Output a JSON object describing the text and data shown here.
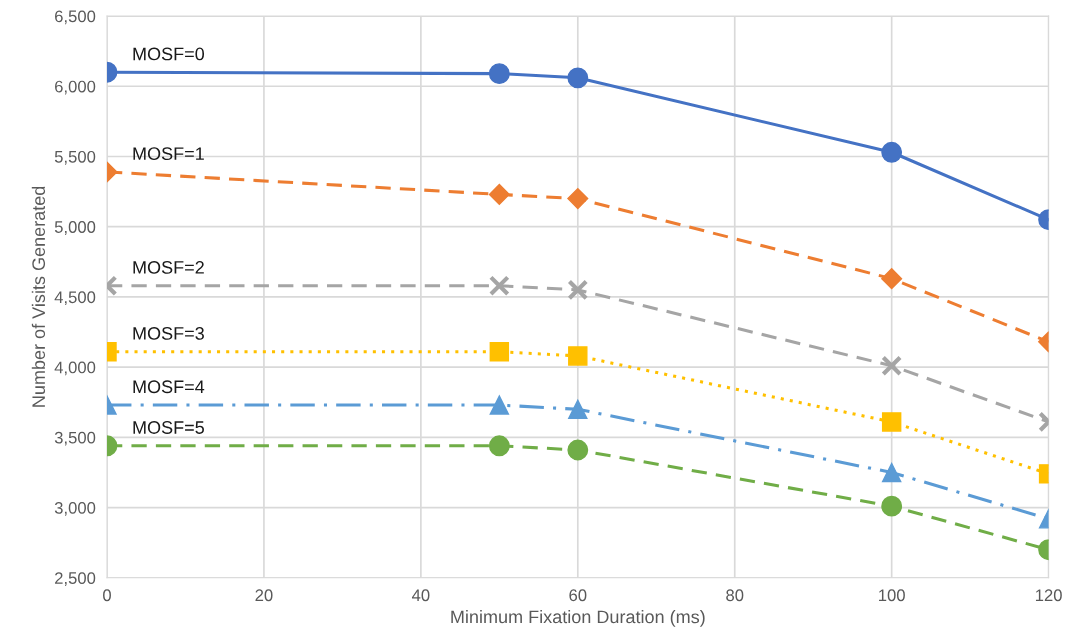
{
  "chart_data": {
    "type": "line",
    "xlabel": "Minimum Fixation Duration (ms)",
    "ylabel": "Number of Visits Generated",
    "x": [
      0,
      50,
      60,
      100,
      120
    ],
    "series": [
      {
        "name": "MOSF=0",
        "color": "#4472c4",
        "marker": "circle",
        "line_style": "solid",
        "values": [
          6100,
          6090,
          6060,
          5530,
          5050
        ]
      },
      {
        "name": "MOSF=1",
        "color": "#ed7d31",
        "marker": "diamond",
        "line_style": "dashed",
        "values": [
          5390,
          5230,
          5200,
          4630,
          4180
        ]
      },
      {
        "name": "MOSF=2",
        "color": "#a5a5a5",
        "marker": "cross",
        "line_style": "dashed",
        "values": [
          4580,
          4580,
          4550,
          4010,
          3610
        ]
      },
      {
        "name": "MOSF=3",
        "color": "#ffc000",
        "marker": "square",
        "line_style": "dotted",
        "values": [
          4110,
          4110,
          4080,
          3610,
          3240
        ]
      },
      {
        "name": "MOSF=4",
        "color": "#5b9bd5",
        "marker": "triangle",
        "line_style": "dashdot",
        "values": [
          3730,
          3730,
          3700,
          3250,
          2920
        ]
      },
      {
        "name": "MOSF=5",
        "color": "#70ad47",
        "marker": "circle",
        "line_style": "dashed",
        "values": [
          3440,
          3440,
          3410,
          3010,
          2700
        ]
      }
    ],
    "xlim": [
      0,
      120
    ],
    "xticks": [
      0,
      20,
      40,
      60,
      80,
      100,
      120
    ],
    "ylim": [
      2500,
      6500
    ],
    "yticks": [
      {
        "value": 2500,
        "label": "2,500"
      },
      {
        "value": 3000,
        "label": "3,000"
      },
      {
        "value": 3500,
        "label": "3,500"
      },
      {
        "value": 4000,
        "label": "4,000"
      },
      {
        "value": 4500,
        "label": "4,500"
      },
      {
        "value": 5000,
        "label": "5,000"
      },
      {
        "value": 5500,
        "label": "5,500"
      },
      {
        "value": 6000,
        "label": "6,000"
      },
      {
        "value": 6500,
        "label": "6,500"
      }
    ],
    "grid": true,
    "legend": false
  }
}
